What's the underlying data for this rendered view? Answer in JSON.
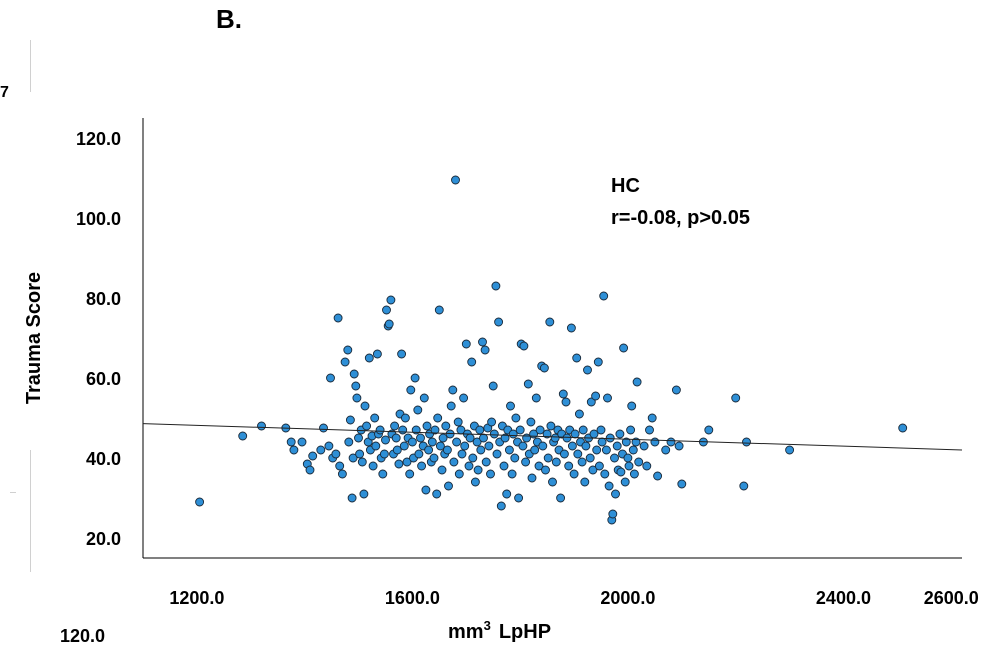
{
  "panel_label": "B.",
  "edge_fragment": "7",
  "bottom_fragment": "120.0",
  "chart_data": {
    "type": "scatter",
    "title": "",
    "xlabel_unit": "mm",
    "xlabel_sup": "3",
    "xlabel_name": "LpHP",
    "ylabel": "Trauma Score",
    "xlim": [
      1100,
      2620
    ],
    "ylim": [
      15,
      125
    ],
    "x_ticks": [
      1200,
      1600,
      2000,
      2400,
      2600
    ],
    "x_tick_labels": [
      "1200.0",
      "1600.0",
      "2000.0",
      "2400.0",
      "2600.0"
    ],
    "y_ticks": [
      20,
      40,
      60,
      80,
      100,
      120
    ],
    "y_tick_labels": [
      "20.0",
      "40.0",
      "60.0",
      "80.0",
      "100.0",
      "120.0"
    ],
    "annotation": {
      "group": "HC",
      "stat": "r=-0.08, p>0.05"
    },
    "regression": {
      "x": [
        1100,
        2620
      ],
      "y": [
        48.6,
        42.0
      ]
    },
    "marker_color": "#2e8fd6",
    "marker_edge": "#1a2a3a",
    "grid": false,
    "points": [
      [
        1205,
        29
      ],
      [
        1285,
        45.5
      ],
      [
        1320,
        48
      ],
      [
        1365,
        47.5
      ],
      [
        1375,
        44
      ],
      [
        1380,
        42
      ],
      [
        1395,
        44
      ],
      [
        1405,
        38.5
      ],
      [
        1410,
        37
      ],
      [
        1415,
        40.5
      ],
      [
        1430,
        42
      ],
      [
        1435,
        47.5
      ],
      [
        1445,
        43
      ],
      [
        1448,
        60
      ],
      [
        1452,
        40
      ],
      [
        1458,
        41
      ],
      [
        1462,
        75
      ],
      [
        1465,
        38
      ],
      [
        1470,
        36
      ],
      [
        1475,
        64
      ],
      [
        1480,
        67
      ],
      [
        1482,
        44
      ],
      [
        1485,
        49.5
      ],
      [
        1488,
        30
      ],
      [
        1490,
        40
      ],
      [
        1492,
        61
      ],
      [
        1495,
        58
      ],
      [
        1497,
        55
      ],
      [
        1500,
        45
      ],
      [
        1502,
        41
      ],
      [
        1505,
        47
      ],
      [
        1507,
        39
      ],
      [
        1510,
        31
      ],
      [
        1512,
        53
      ],
      [
        1515,
        48
      ],
      [
        1518,
        44
      ],
      [
        1520,
        65
      ],
      [
        1522,
        42
      ],
      [
        1525,
        45.5
      ],
      [
        1527,
        38
      ],
      [
        1530,
        50
      ],
      [
        1532,
        43
      ],
      [
        1535,
        66
      ],
      [
        1537,
        46
      ],
      [
        1540,
        47
      ],
      [
        1542,
        40
      ],
      [
        1545,
        36
      ],
      [
        1548,
        41
      ],
      [
        1550,
        44.5
      ],
      [
        1552,
        77
      ],
      [
        1555,
        73
      ],
      [
        1557,
        73.5
      ],
      [
        1560,
        79.5
      ],
      [
        1562,
        46
      ],
      [
        1565,
        41
      ],
      [
        1567,
        48
      ],
      [
        1570,
        45
      ],
      [
        1572,
        42
      ],
      [
        1575,
        38.5
      ],
      [
        1577,
        51
      ],
      [
        1580,
        66
      ],
      [
        1582,
        47
      ],
      [
        1585,
        43
      ],
      [
        1587,
        50
      ],
      [
        1590,
        39
      ],
      [
        1592,
        45
      ],
      [
        1595,
        36
      ],
      [
        1597,
        57
      ],
      [
        1600,
        44
      ],
      [
        1602,
        40
      ],
      [
        1605,
        60
      ],
      [
        1607,
        47
      ],
      [
        1610,
        52
      ],
      [
        1612,
        41
      ],
      [
        1615,
        45
      ],
      [
        1617,
        38
      ],
      [
        1620,
        43
      ],
      [
        1622,
        55
      ],
      [
        1625,
        32
      ],
      [
        1627,
        48
      ],
      [
        1630,
        42
      ],
      [
        1632,
        46
      ],
      [
        1635,
        39
      ],
      [
        1637,
        44
      ],
      [
        1640,
        40
      ],
      [
        1642,
        47
      ],
      [
        1645,
        31
      ],
      [
        1647,
        50
      ],
      [
        1650,
        77
      ],
      [
        1652,
        43
      ],
      [
        1655,
        37
      ],
      [
        1657,
        45
      ],
      [
        1660,
        41
      ],
      [
        1662,
        48
      ],
      [
        1665,
        42
      ],
      [
        1667,
        33
      ],
      [
        1670,
        46
      ],
      [
        1672,
        53
      ],
      [
        1675,
        57
      ],
      [
        1677,
        39
      ],
      [
        1680,
        109.5
      ],
      [
        1682,
        44
      ],
      [
        1685,
        49
      ],
      [
        1687,
        36
      ],
      [
        1690,
        47
      ],
      [
        1692,
        41
      ],
      [
        1695,
        55
      ],
      [
        1697,
        43
      ],
      [
        1700,
        68.5
      ],
      [
        1702,
        46
      ],
      [
        1705,
        38
      ],
      [
        1707,
        45
      ],
      [
        1710,
        64
      ],
      [
        1712,
        40
      ],
      [
        1715,
        48
      ],
      [
        1717,
        34
      ],
      [
        1720,
        44
      ],
      [
        1722,
        37
      ],
      [
        1725,
        47
      ],
      [
        1727,
        42
      ],
      [
        1730,
        69
      ],
      [
        1732,
        45
      ],
      [
        1735,
        67
      ],
      [
        1737,
        39
      ],
      [
        1740,
        47.5
      ],
      [
        1742,
        43
      ],
      [
        1745,
        36
      ],
      [
        1747,
        49
      ],
      [
        1750,
        58
      ],
      [
        1752,
        46
      ],
      [
        1755,
        83
      ],
      [
        1757,
        41
      ],
      [
        1760,
        74
      ],
      [
        1762,
        44
      ],
      [
        1765,
        28
      ],
      [
        1767,
        48
      ],
      [
        1770,
        38
      ],
      [
        1772,
        45
      ],
      [
        1775,
        31
      ],
      [
        1777,
        47
      ],
      [
        1780,
        42
      ],
      [
        1782,
        53
      ],
      [
        1785,
        36
      ],
      [
        1787,
        46
      ],
      [
        1790,
        40
      ],
      [
        1792,
        50
      ],
      [
        1795,
        44
      ],
      [
        1797,
        30
      ],
      [
        1800,
        47
      ],
      [
        1802,
        68.5
      ],
      [
        1805,
        43
      ],
      [
        1807,
        68
      ],
      [
        1810,
        39
      ],
      [
        1812,
        45
      ],
      [
        1815,
        58.5
      ],
      [
        1817,
        41
      ],
      [
        1820,
        49
      ],
      [
        1822,
        35
      ],
      [
        1825,
        46
      ],
      [
        1827,
        42
      ],
      [
        1830,
        55
      ],
      [
        1832,
        44
      ],
      [
        1835,
        38
      ],
      [
        1837,
        47
      ],
      [
        1840,
        63
      ],
      [
        1842,
        43
      ],
      [
        1845,
        62.5
      ],
      [
        1847,
        37
      ],
      [
        1850,
        46
      ],
      [
        1852,
        40
      ],
      [
        1855,
        74
      ],
      [
        1857,
        48
      ],
      [
        1860,
        34
      ],
      [
        1862,
        44
      ],
      [
        1865,
        45
      ],
      [
        1867,
        39
      ],
      [
        1870,
        47
      ],
      [
        1872,
        42
      ],
      [
        1875,
        30
      ],
      [
        1877,
        46
      ],
      [
        1880,
        56
      ],
      [
        1882,
        41
      ],
      [
        1885,
        54
      ],
      [
        1887,
        45
      ],
      [
        1890,
        38
      ],
      [
        1892,
        47
      ],
      [
        1895,
        72.5
      ],
      [
        1897,
        43
      ],
      [
        1900,
        36
      ],
      [
        1902,
        46
      ],
      [
        1905,
        65
      ],
      [
        1907,
        41
      ],
      [
        1910,
        51
      ],
      [
        1912,
        44
      ],
      [
        1915,
        39
      ],
      [
        1917,
        47
      ],
      [
        1920,
        34
      ],
      [
        1922,
        43
      ],
      [
        1925,
        62
      ],
      [
        1927,
        45
      ],
      [
        1930,
        40
      ],
      [
        1932,
        54
      ],
      [
        1935,
        37
      ],
      [
        1937,
        46
      ],
      [
        1940,
        55.5
      ],
      [
        1942,
        42
      ],
      [
        1945,
        64
      ],
      [
        1947,
        38
      ],
      [
        1950,
        47
      ],
      [
        1952,
        44
      ],
      [
        1955,
        80.5
      ],
      [
        1957,
        36
      ],
      [
        1960,
        42
      ],
      [
        1962,
        55
      ],
      [
        1965,
        33
      ],
      [
        1967,
        45
      ],
      [
        1970,
        24.5
      ],
      [
        1972,
        26
      ],
      [
        1975,
        40
      ],
      [
        1977,
        31
      ],
      [
        1980,
        43
      ],
      [
        1982,
        37
      ],
      [
        1985,
        46
      ],
      [
        1987,
        36.5
      ],
      [
        1990,
        41
      ],
      [
        1992,
        67.5
      ],
      [
        1995,
        34
      ],
      [
        1997,
        44
      ],
      [
        2000,
        40
      ],
      [
        2002,
        38
      ],
      [
        2005,
        47
      ],
      [
        2007,
        53
      ],
      [
        2010,
        42
      ],
      [
        2012,
        36
      ],
      [
        2015,
        44
      ],
      [
        2017,
        59
      ],
      [
        2020,
        39
      ],
      [
        2030,
        43
      ],
      [
        2035,
        38
      ],
      [
        2040,
        47
      ],
      [
        2045,
        50
      ],
      [
        2050,
        44
      ],
      [
        2055,
        35.5
      ],
      [
        2070,
        42
      ],
      [
        2080,
        44
      ],
      [
        2090,
        57
      ],
      [
        2095,
        43
      ],
      [
        2100,
        33.5
      ],
      [
        2140,
        44
      ],
      [
        2150,
        47
      ],
      [
        2200,
        55
      ],
      [
        2215,
        33
      ],
      [
        2220,
        44
      ],
      [
        2300,
        42
      ],
      [
        2510,
        47.5
      ]
    ]
  }
}
